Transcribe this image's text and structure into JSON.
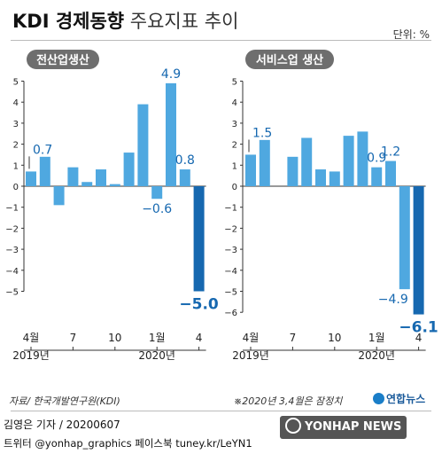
{
  "header": {
    "title_bold": "KDI 경제동향",
    "title_light": "주요지표 추이",
    "unit": "단위: %"
  },
  "footer": {
    "source": "자료/ 한국개발연구원(KDI)",
    "note": "※2020년 3,4월은 잠정치",
    "logo": "연합뉴스",
    "credit": "김영은 기자 / 20200607",
    "sns": "트위터 @yonhap_graphics  페이스북 tuney.kr/LeYN1",
    "agency": "YONHAP NEWS"
  },
  "colors": {
    "bar": "#4fa8e0",
    "highlight": "#1668b0",
    "axis": "#333333",
    "badge": "#6e6e6e",
    "text": "#222222"
  },
  "chart_data": [
    {
      "type": "bar",
      "title": "전산업생산",
      "x": [
        "2019-04",
        "2019-05",
        "2019-06",
        "2019-07",
        "2019-08",
        "2019-09",
        "2019-10",
        "2019-11",
        "2019-12",
        "2020-01",
        "2020-02",
        "2020-03",
        "2020-04"
      ],
      "values": [
        0.7,
        1.4,
        -0.9,
        0.9,
        0.2,
        0.8,
        0.1,
        1.6,
        3.9,
        -0.6,
        4.9,
        0.8,
        -5.0
      ],
      "labels": [
        {
          "index": 0,
          "text": "0.7"
        },
        {
          "index": 9,
          "text": "−0.6"
        },
        {
          "index": 10,
          "text": "4.9"
        },
        {
          "index": 11,
          "text": "0.8"
        },
        {
          "index": 12,
          "text": "−5.0"
        }
      ],
      "x_ticks": [
        {
          "index": 0,
          "lines": [
            "4월",
            "2019년"
          ]
        },
        {
          "index": 3,
          "lines": [
            "7"
          ]
        },
        {
          "index": 6,
          "lines": [
            "10"
          ]
        },
        {
          "index": 9,
          "lines": [
            "1월",
            "2020년"
          ]
        },
        {
          "index": 12,
          "lines": [
            "4"
          ]
        }
      ],
      "y_ticks": [
        "5",
        "4",
        "3",
        "2",
        "1",
        "0",
        "−1",
        "−2",
        "−3",
        "−4",
        "−5"
      ],
      "ylim": [
        -5,
        5
      ],
      "highlight_index": 12
    },
    {
      "type": "bar",
      "title": "서비스업 생산",
      "x": [
        "2019-04",
        "2019-05",
        "2019-06",
        "2019-07",
        "2019-08",
        "2019-09",
        "2019-10",
        "2019-11",
        "2019-12",
        "2020-01",
        "2020-02",
        "2020-03",
        "2020-04"
      ],
      "values": [
        1.5,
        2.2,
        0.0,
        1.4,
        2.3,
        0.8,
        0.7,
        2.4,
        2.6,
        0.9,
        1.2,
        -4.9,
        -6.1
      ],
      "labels": [
        {
          "index": 0,
          "text": "1.5"
        },
        {
          "index": 9,
          "text": "0.9"
        },
        {
          "index": 10,
          "text": "1.2"
        },
        {
          "index": 11,
          "text": "−4.9"
        },
        {
          "index": 12,
          "text": "−6.1"
        }
      ],
      "x_ticks": [
        {
          "index": 0,
          "lines": [
            "4월",
            "2019년"
          ]
        },
        {
          "index": 3,
          "lines": [
            "7"
          ]
        },
        {
          "index": 6,
          "lines": [
            "10"
          ]
        },
        {
          "index": 9,
          "lines": [
            "1월",
            "2020년"
          ]
        },
        {
          "index": 12,
          "lines": [
            "4"
          ]
        }
      ],
      "y_ticks": [
        "5",
        "4",
        "3",
        "2",
        "1",
        "0",
        "−1",
        "−2",
        "−3",
        "−4",
        "−5",
        "−6"
      ],
      "ylim": [
        -6,
        5
      ],
      "highlight_index": 12
    }
  ]
}
